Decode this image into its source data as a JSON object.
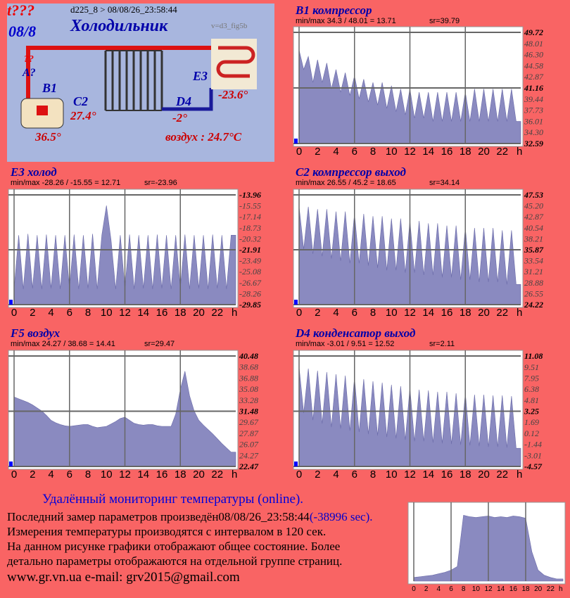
{
  "panel": {
    "code": "t???",
    "date": "08/8",
    "header": "d225_8  >  08/08/26_23:58:44",
    "title": "Холодильник",
    "version": "v=d3_fig5b",
    "q": "??",
    "a": "A?",
    "b1": "B1",
    "c2": "C2",
    "c2_value": "27.4°",
    "d4": "D4",
    "d4_value": "-2°",
    "e3": "E3",
    "e3_value": "-23.6°",
    "b1_value": "36.5°",
    "air": "воздух : 24.7°C"
  },
  "chart_data": [
    {
      "type": "area",
      "title": "B1 компрессор",
      "stats": "min/max  34.3 / 48.01 = 13.71",
      "sr": "sr=39.79",
      "color": "#8a8ac0",
      "xlim": [
        0,
        24
      ],
      "xticks": [
        0,
        2,
        4,
        6,
        8,
        10,
        12,
        14,
        16,
        18,
        20,
        22
      ],
      "x_unit": "h",
      "ylim": [
        32.59,
        49.72
      ],
      "yticks": [
        49.72,
        48.01,
        {
          "value": 46.3,
          "label": "46.30"
        },
        44.58,
        42.87,
        41.16,
        39.44,
        37.73,
        36.01,
        {
          "value": 34.3,
          "label": "34.30"
        },
        32.59
      ],
      "x": [
        0,
        0.5,
        1,
        1.5,
        2,
        2.5,
        3,
        3.5,
        4,
        4.5,
        5,
        5.5,
        6,
        6.5,
        7,
        7.5,
        8,
        8.5,
        9,
        9.5,
        10,
        10.5,
        11,
        11.5,
        12,
        12.5,
        13,
        13.5,
        14,
        14.5,
        15,
        15.5,
        16,
        16.5,
        17,
        17.5,
        18,
        18.5,
        19,
        19.5,
        20,
        20.5,
        21,
        21.5,
        22,
        22.5,
        23,
        23.5
      ],
      "values": [
        47,
        44,
        46,
        42,
        45.5,
        42,
        45,
        41,
        44,
        40.5,
        43.5,
        40,
        43,
        39.5,
        42.5,
        39,
        42,
        38.5,
        42,
        38,
        41.5,
        37.5,
        41,
        37,
        41,
        36.5,
        40.5,
        36.5,
        40.5,
        36,
        40.5,
        36,
        40.5,
        36,
        40.5,
        36,
        40.5,
        36,
        41,
        36,
        41,
        36,
        41,
        36,
        41,
        36,
        41,
        36
      ]
    },
    {
      "type": "area",
      "title": "E3 холод",
      "stats": "min/max   -28.26 / -15.55 = 12.71",
      "sr": "sr=-23.96",
      "color": "#8a8ac0",
      "xlim": [
        0,
        24
      ],
      "xticks": [
        0,
        2,
        4,
        6,
        8,
        10,
        12,
        14,
        16,
        18,
        20,
        22
      ],
      "x_unit": "h",
      "ylim": [
        -29.85,
        -13.96
      ],
      "yticks": [
        -13.96,
        -15.55,
        -17.14,
        -18.73,
        -20.32,
        -21.91,
        -23.49,
        -25.08,
        -26.67,
        -28.26,
        -29.85
      ],
      "x": [
        0,
        0.5,
        1,
        1.5,
        2,
        2.5,
        3,
        3.5,
        4,
        4.5,
        5,
        5.5,
        6,
        6.5,
        7,
        7.5,
        8,
        8.5,
        9,
        9.5,
        10,
        10.5,
        11,
        11.5,
        12,
        12.5,
        13,
        13.5,
        14,
        14.5,
        15,
        15.5,
        16,
        16.5,
        17,
        17.5,
        18,
        18.5,
        19,
        19.5,
        20,
        20.5,
        21,
        21.5,
        22,
        22.5,
        23,
        23.5
      ],
      "values": [
        -27.6,
        -19.8,
        -27.6,
        -19.6,
        -27.5,
        -19.8,
        -27.6,
        -19.7,
        -27.5,
        -19.8,
        -27.6,
        -19.8,
        -27.5,
        -19.7,
        -27.6,
        -19.8,
        -27.5,
        -19.6,
        -27.6,
        -19.8,
        -15.5,
        -20.5,
        -27.6,
        -19.8,
        -27.5,
        -19.7,
        -27.6,
        -19.8,
        -27.5,
        -19.8,
        -27.6,
        -19.7,
        -27.5,
        -19.8,
        -27.6,
        -19.8,
        -27.5,
        -19.7,
        -27.6,
        -19.8,
        -27.5,
        -19.8,
        -27.6,
        -19.7,
        -27.5,
        -19.8,
        -27.6,
        -19.8
      ]
    },
    {
      "type": "area",
      "title": "C2 компрессор выход",
      "stats": "min/max   26.55 / 45.2 = 18.65",
      "sr": "sr=34.14",
      "color": "#8a8ac0",
      "xlim": [
        0,
        24
      ],
      "xticks": [
        0,
        2,
        4,
        6,
        8,
        10,
        12,
        14,
        16,
        18,
        20,
        22
      ],
      "x_unit": "h",
      "ylim": [
        24.22,
        47.53
      ],
      "yticks": [
        47.53,
        {
          "value": 45.2,
          "label": "45.20"
        },
        42.87,
        40.54,
        38.21,
        35.87,
        33.54,
        31.21,
        28.88,
        26.55,
        24.22
      ],
      "x": [
        0,
        0.5,
        1,
        1.5,
        2,
        2.5,
        3,
        3.5,
        4,
        4.5,
        5,
        5.5,
        6,
        6.5,
        7,
        7.5,
        8,
        8.5,
        9,
        9.5,
        10,
        10.5,
        11,
        11.5,
        12,
        12.5,
        13,
        13.5,
        14,
        14.5,
        15,
        15.5,
        16,
        16.5,
        17,
        17.5,
        18,
        18.5,
        19,
        19.5,
        20,
        20.5,
        21,
        21.5,
        22,
        22.5,
        23,
        23.5
      ],
      "values": [
        45,
        36,
        45,
        35,
        44.5,
        34.5,
        44.5,
        34,
        44,
        33.5,
        44,
        33,
        43.5,
        33,
        43.5,
        32.5,
        43,
        32,
        43,
        31.5,
        42.5,
        31.5,
        42.5,
        31,
        42,
        31,
        42,
        30.5,
        41.5,
        30.5,
        41.5,
        30,
        41,
        30,
        41,
        29.5,
        40.5,
        29.5,
        40.5,
        29,
        40.5,
        29,
        40.5,
        29,
        40,
        28.5,
        40,
        28.5
      ]
    },
    {
      "type": "area",
      "title": "F5 воздух",
      "stats": "min/max   24.27 / 38.68 = 14.41",
      "sr": "sr=29.47",
      "color": "#8a8ac0",
      "xlim": [
        0,
        24
      ],
      "xticks": [
        0,
        2,
        4,
        6,
        8,
        10,
        12,
        14,
        16,
        18,
        20,
        22
      ],
      "x_unit": "h",
      "ylim": [
        22.47,
        40.48
      ],
      "yticks": [
        40.48,
        38.68,
        36.88,
        35.08,
        33.28,
        31.48,
        29.67,
        27.87,
        26.07,
        24.27,
        22.47
      ],
      "x": [
        0,
        0.5,
        1,
        1.5,
        2,
        2.5,
        3,
        3.5,
        4,
        4.5,
        5,
        5.5,
        6,
        6.5,
        7,
        7.5,
        8,
        8.5,
        9,
        9.5,
        10,
        10.5,
        11,
        11.5,
        12,
        12.5,
        13,
        13.5,
        14,
        14.5,
        15,
        15.5,
        16,
        16.5,
        17,
        17.5,
        18,
        18.5,
        19,
        19.5,
        20,
        20.5,
        21,
        21.5,
        22,
        22.5,
        23,
        23.5
      ],
      "values": [
        33.8,
        33.5,
        33.2,
        32.9,
        32.5,
        32,
        31.5,
        30.8,
        30,
        29.6,
        29.3,
        29.1,
        29,
        29.1,
        29.2,
        29.3,
        29.3,
        29,
        28.8,
        28.9,
        29,
        29.4,
        29.8,
        30.3,
        30.5,
        30,
        29.5,
        29.3,
        29.2,
        29.3,
        29.3,
        29.1,
        29,
        29,
        29,
        31,
        35,
        38,
        34,
        31.5,
        30,
        29.2,
        28.5,
        27.8,
        27,
        26.2,
        25.5,
        24.8
      ]
    },
    {
      "type": "area",
      "title": "D4 конденсатор выход",
      "stats": "min/max   -3.01 / 9.51 = 12.52",
      "sr": "sr=2.11",
      "color": "#8a8ac0",
      "xlim": [
        0,
        24
      ],
      "xticks": [
        0,
        2,
        4,
        6,
        8,
        10,
        12,
        14,
        16,
        18,
        20,
        22
      ],
      "x_unit": "h",
      "ylim": [
        -4.57,
        11.08
      ],
      "yticks": [
        11.08,
        9.51,
        7.95,
        6.38,
        4.81,
        3.25,
        1.69,
        0.12,
        -1.44,
        -3.01,
        -4.57
      ],
      "x": [
        0,
        0.5,
        1,
        1.5,
        2,
        2.5,
        3,
        3.5,
        4,
        4.5,
        5,
        5.5,
        6,
        6.5,
        7,
        7.5,
        8,
        8.5,
        9,
        9.5,
        10,
        10.5,
        11,
        11.5,
        12,
        12.5,
        13,
        13.5,
        14,
        14.5,
        15,
        15.5,
        16,
        16.5,
        17,
        17.5,
        18,
        18.5,
        19,
        19.5,
        20,
        20.5,
        21,
        21.5,
        22,
        22.5,
        23,
        23.5
      ],
      "values": [
        9.5,
        3,
        9.3,
        2,
        9,
        1.5,
        8.8,
        1,
        8.5,
        0.8,
        8.3,
        0.5,
        8,
        0.3,
        7.8,
        0,
        7.5,
        -0.2,
        7.3,
        -0.4,
        7,
        -0.6,
        6.8,
        -0.8,
        6.5,
        -1,
        6.3,
        -1,
        6.2,
        -1.2,
        6,
        -1.3,
        6,
        -1.4,
        5.8,
        -1.5,
        5.8,
        -1.6,
        5.6,
        -1.7,
        5.6,
        -1.8,
        5.5,
        -1.8,
        5.5,
        -1.9,
        5.4,
        -2
      ]
    },
    {
      "type": "area",
      "color": "#8a8ac0",
      "xlim": [
        0,
        24
      ],
      "xticks": [
        0,
        2,
        4,
        6,
        8,
        10,
        12,
        14,
        16,
        18,
        20,
        22
      ],
      "x_unit": "h",
      "ylim": [
        0,
        100
      ],
      "yticks": [],
      "x": [
        0,
        1,
        2,
        3,
        4,
        5,
        6,
        7,
        8,
        9,
        10,
        11,
        12,
        13,
        14,
        15,
        16,
        17,
        18,
        19,
        20,
        21,
        22,
        23
      ],
      "values": [
        5,
        6,
        7,
        8,
        10,
        12,
        15,
        20,
        90,
        88,
        87,
        88,
        89,
        87,
        88,
        87,
        89,
        88,
        86,
        40,
        15,
        8,
        5,
        3
      ]
    }
  ],
  "footer": {
    "heading": "Удалённый мониторинг температуры (online).",
    "last": "Последний замер параметров произведён08/08/26_23:58:44",
    "offset": "(-38996 sec).",
    "line2": "Измерения температуры  производятся с интервалом в 120 сек.",
    "line3": "На данном рисунке графики отображают общее состояние. Более",
    "line4": "детально параметры отображаются на отдельной группе страниц.",
    "contacts": "www.gr.vn.ua     e-mail: grv2015@gmail.com"
  }
}
